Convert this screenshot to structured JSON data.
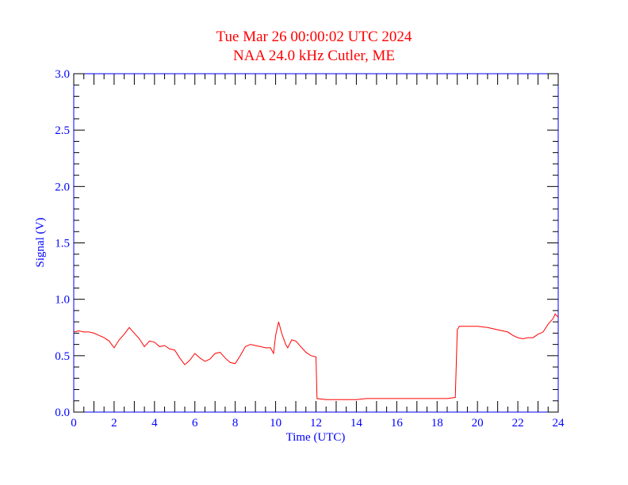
{
  "chart_data": {
    "type": "line",
    "title": "Tue Mar 26 00:00:02 UTC 2024",
    "subtitle": "NAA 24.0 kHz Cutler, ME",
    "xlabel": "Time (UTC)",
    "ylabel": "Signal (V)",
    "xlim": [
      0,
      24
    ],
    "ylim": [
      0,
      3.0
    ],
    "xticks": [
      "0",
      "2",
      "4",
      "6",
      "8",
      "10",
      "12",
      "14",
      "16",
      "18",
      "20",
      "22",
      "24"
    ],
    "yticks": [
      "0.0",
      "0.5",
      "1.0",
      "1.5",
      "2.0",
      "2.5",
      "3.0"
    ],
    "grid": false,
    "colors": {
      "series": "#ff0000",
      "axes": "#0000ff",
      "title": "#ff0000"
    },
    "series": [
      {
        "x": [
          0,
          0.25,
          0.5,
          0.75,
          1,
          1.25,
          1.5,
          1.75,
          2,
          2.25,
          2.5,
          2.75,
          3,
          3.25,
          3.5,
          3.75,
          4,
          4.25,
          4.5,
          4.75,
          5,
          5.25,
          5.5,
          5.75,
          6,
          6.25,
          6.5,
          6.75,
          7,
          7.25,
          7.5,
          7.75,
          8,
          8.25,
          8.5,
          8.75,
          9,
          9.25,
          9.5,
          9.75,
          9.9,
          10,
          10.15,
          10.3,
          10.5,
          10.6,
          10.8,
          11,
          11.25,
          11.5,
          11.75,
          12,
          12.05,
          12.5,
          13,
          13.5,
          14,
          14.5,
          15,
          15.5,
          16,
          16.5,
          17,
          17.5,
          18,
          18.5,
          18.9,
          19.0,
          19.1,
          19.5,
          20,
          20.5,
          21,
          21.5,
          21.75,
          22,
          22.25,
          22.5,
          22.75,
          23,
          23.25,
          23.5,
          23.75,
          23.85,
          24
        ],
        "y": [
          0.71,
          0.72,
          0.71,
          0.71,
          0.7,
          0.68,
          0.66,
          0.63,
          0.57,
          0.64,
          0.69,
          0.75,
          0.7,
          0.65,
          0.58,
          0.63,
          0.62,
          0.58,
          0.59,
          0.56,
          0.55,
          0.48,
          0.42,
          0.46,
          0.52,
          0.48,
          0.45,
          0.47,
          0.52,
          0.53,
          0.48,
          0.44,
          0.43,
          0.5,
          0.58,
          0.6,
          0.59,
          0.58,
          0.57,
          0.57,
          0.52,
          0.68,
          0.8,
          0.7,
          0.6,
          0.57,
          0.64,
          0.63,
          0.58,
          0.53,
          0.5,
          0.49,
          0.12,
          0.11,
          0.11,
          0.11,
          0.11,
          0.12,
          0.12,
          0.12,
          0.12,
          0.12,
          0.12,
          0.12,
          0.12,
          0.12,
          0.13,
          0.73,
          0.76,
          0.76,
          0.76,
          0.75,
          0.73,
          0.71,
          0.68,
          0.66,
          0.65,
          0.66,
          0.66,
          0.69,
          0.71,
          0.78,
          0.83,
          0.87,
          0.84
        ]
      }
    ]
  }
}
